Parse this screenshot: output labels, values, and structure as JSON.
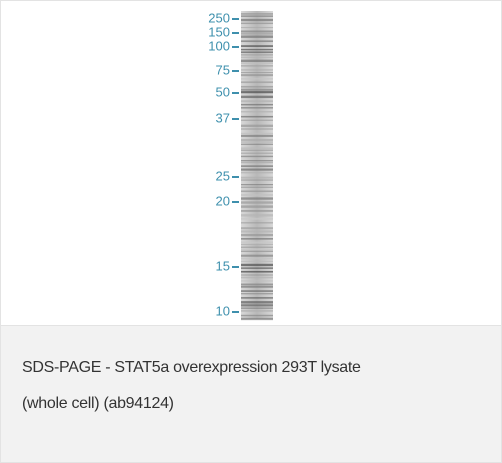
{
  "figure": {
    "markers": [
      "250",
      "150",
      "100",
      "75",
      "50",
      "37",
      "25",
      "20",
      "15",
      "10"
    ],
    "caption": [
      "SDS-PAGE - STAT5a overexpression 293T lysate",
      "(whole cell) (ab94124)"
    ]
  }
}
